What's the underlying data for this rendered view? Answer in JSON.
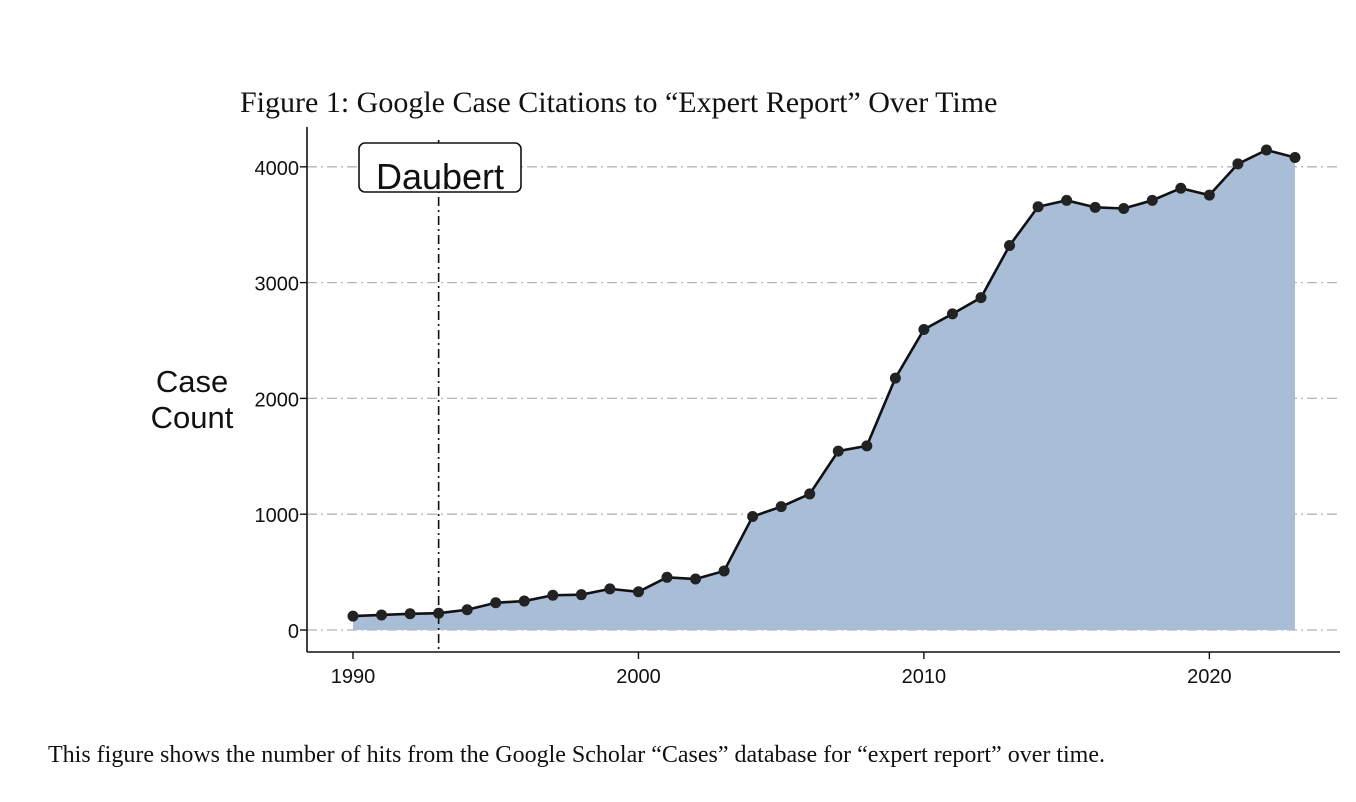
{
  "figure": {
    "title": "Figure 1: Google Case Citations to “Expert Report” Over Time",
    "caption": "This figure shows the number of hits from the Google Scholar “Cases” database for “expert report” over time."
  },
  "chart_data": {
    "type": "area",
    "title": "Figure 1: Google Case Citations to “Expert Report” Over Time",
    "xlabel": "",
    "ylabel": "Case Count",
    "ylabel_lines": [
      "Case",
      "Count"
    ],
    "xlim": [
      1990,
      2023
    ],
    "ylim": [
      0,
      4200
    ],
    "xticks": [
      1990,
      2000,
      2010,
      2020
    ],
    "yticks": [
      0,
      1000,
      2000,
      3000,
      4000
    ],
    "grid": "horizontal dash-dot",
    "fill_color": "#a9bdd6",
    "line_color": "#111111",
    "x": [
      1990,
      1991,
      1992,
      1993,
      1994,
      1995,
      1996,
      1997,
      1998,
      1999,
      2000,
      2001,
      2002,
      2003,
      2004,
      2005,
      2006,
      2007,
      2008,
      2009,
      2010,
      2011,
      2012,
      2013,
      2014,
      2015,
      2016,
      2017,
      2018,
      2019,
      2020,
      2021,
      2022,
      2023
    ],
    "values": [
      120,
      130,
      140,
      145,
      175,
      235,
      250,
      300,
      305,
      355,
      330,
      455,
      440,
      510,
      980,
      1065,
      1175,
      1545,
      1590,
      2175,
      2595,
      2730,
      2870,
      3320,
      3655,
      3710,
      3650,
      3640,
      3710,
      3815,
      3755,
      4025,
      4145,
      4080
    ],
    "annotation": {
      "label": "Daubert",
      "x": 1993,
      "style": "vertical dash-dot line"
    }
  }
}
